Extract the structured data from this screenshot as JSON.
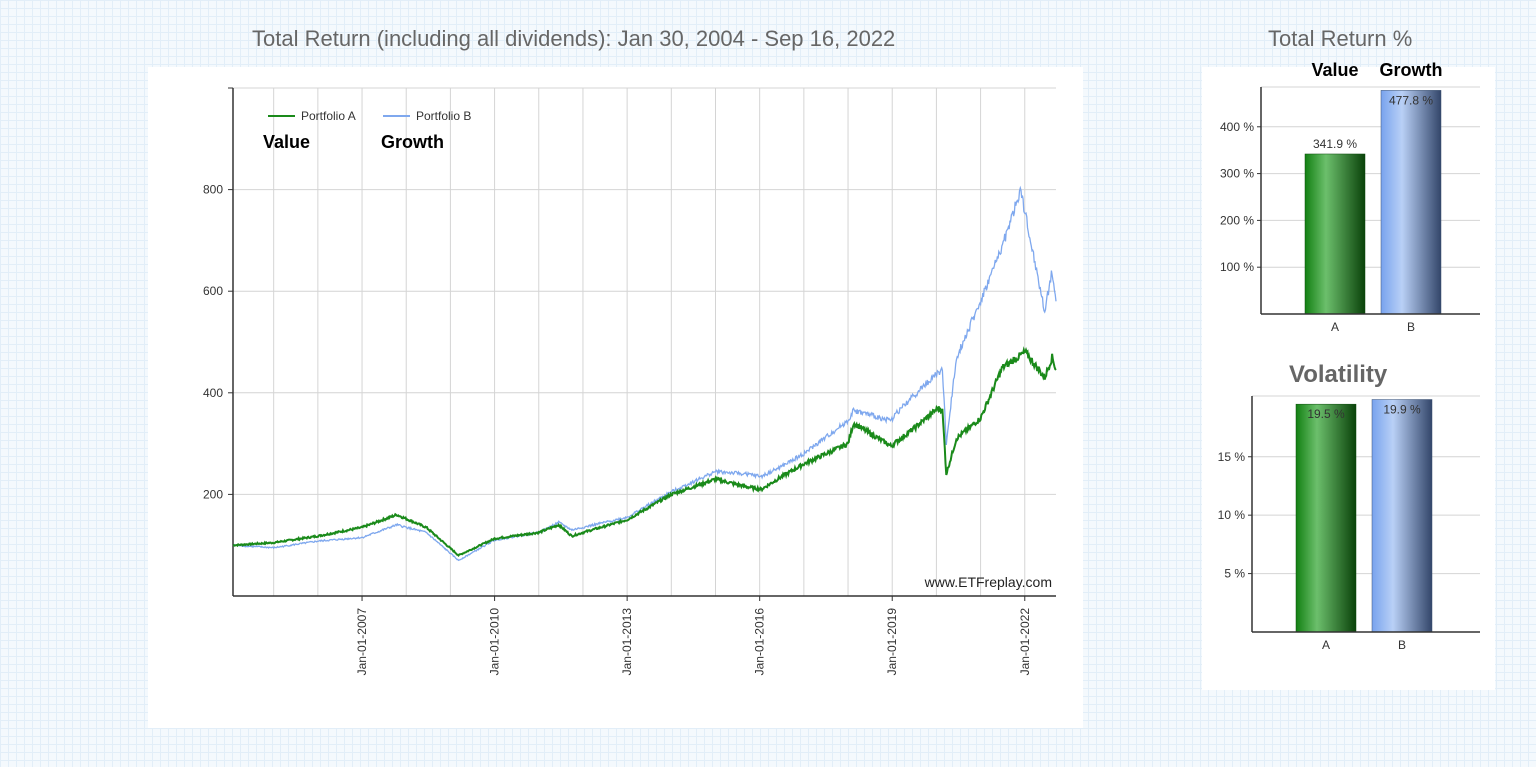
{
  "main_title": "Total Return (including all dividends): Jan 30, 2004 - Sep 16, 2022",
  "side_title": "Total Return %",
  "volatility_title": "Volatility",
  "watermark": "www.ETFreplay.com",
  "annotations": {
    "a": "Value",
    "b": "Growth"
  },
  "colors": {
    "portfolio_a": "#1a8a1a",
    "portfolio_b": "#7fa8ee"
  },
  "chart_data": [
    {
      "type": "line",
      "title": "Total Return (including all dividends): Jan 30, 2004 - Sep 16, 2022",
      "xlim": [
        "2004-01-30",
        "2022-09-16"
      ],
      "ylim": [
        0,
        1000
      ],
      "yticks": [
        "200",
        "400",
        "600",
        "800"
      ],
      "xticks": [
        "Jan-01-2007",
        "Jan-01-2010",
        "Jan-01-2013",
        "Jan-01-2016",
        "Jan-01-2019",
        "Jan-01-2022"
      ],
      "grid": true,
      "legend": "top-left",
      "series": [
        {
          "name": "Portfolio A",
          "label": "Value",
          "x": [
            "2004-01-30",
            "2005-01-01",
            "2006-01-01",
            "2007-01-01",
            "2007-10-15",
            "2008-06-15",
            "2009-03-09",
            "2010-01-01",
            "2011-01-01",
            "2011-06-15",
            "2011-10-01",
            "2012-01-01",
            "2013-01-01",
            "2014-01-01",
            "2015-01-01",
            "2015-09-15",
            "2016-01-15",
            "2016-07-01",
            "2017-01-01",
            "2018-01-01",
            "2018-02-15",
            "2018-12-24",
            "2019-01-15",
            "2019-07-01",
            "2020-01-15",
            "2020-02-20",
            "2020-03-23",
            "2020-06-15",
            "2021-01-01",
            "2021-07-01",
            "2022-01-05",
            "2022-06-15",
            "2022-08-15",
            "2022-09-16"
          ],
          "y": [
            100,
            105,
            118,
            135,
            160,
            135,
            80,
            113,
            125,
            140,
            118,
            125,
            150,
            200,
            230,
            215,
            210,
            235,
            260,
            300,
            340,
            295,
            300,
            330,
            370,
            365,
            240,
            310,
            350,
            450,
            480,
            430,
            470,
            445
          ]
        },
        {
          "name": "Portfolio B",
          "label": "Growth",
          "x": [
            "2004-01-30",
            "2005-01-01",
            "2006-01-01",
            "2007-01-01",
            "2007-10-15",
            "2008-06-15",
            "2009-03-09",
            "2010-01-01",
            "2011-01-01",
            "2011-06-15",
            "2011-10-01",
            "2012-01-01",
            "2013-01-01",
            "2014-01-01",
            "2015-01-01",
            "2015-09-15",
            "2016-01-15",
            "2016-07-01",
            "2017-01-01",
            "2018-01-01",
            "2018-02-15",
            "2018-12-24",
            "2019-01-15",
            "2019-07-01",
            "2020-01-15",
            "2020-02-20",
            "2020-03-23",
            "2020-06-15",
            "2021-01-01",
            "2021-07-01",
            "2021-12-01",
            "2022-01-05",
            "2022-06-15",
            "2022-08-15",
            "2022-09-16"
          ],
          "y": [
            100,
            95,
            108,
            115,
            140,
            125,
            70,
            110,
            125,
            145,
            130,
            135,
            155,
            205,
            245,
            240,
            235,
            255,
            280,
            345,
            365,
            345,
            355,
            395,
            440,
            445,
            300,
            470,
            580,
            690,
            800,
            750,
            560,
            640,
            580
          ]
        }
      ]
    },
    {
      "type": "bar",
      "title": "Total Return %",
      "categories": [
        "A",
        "B"
      ],
      "category_labels": [
        "Value",
        "Growth"
      ],
      "values": [
        341.9,
        477.8
      ],
      "data_labels": [
        "341.9 %",
        "477.8 %"
      ],
      "yticks": [
        "100 %",
        "200 %",
        "300 %",
        "400 %"
      ],
      "ylim": [
        0,
        485
      ],
      "grid": true
    },
    {
      "type": "bar",
      "title": "Volatility",
      "categories": [
        "A",
        "B"
      ],
      "values": [
        19.5,
        19.9
      ],
      "data_labels": [
        "19.5 %",
        "19.9 %"
      ],
      "yticks": [
        "5 %",
        "10 %",
        "15 %"
      ],
      "ylim": [
        0,
        20.2
      ],
      "grid": true
    }
  ]
}
